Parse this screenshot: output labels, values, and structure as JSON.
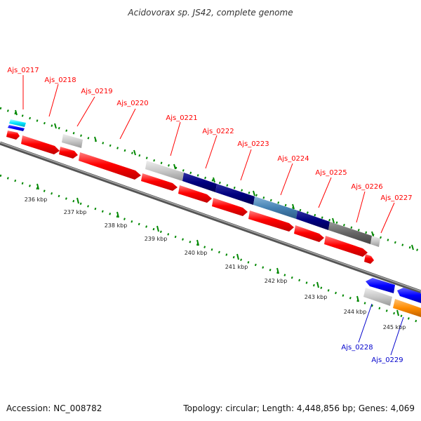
{
  "title": "Acidovorax sp. JS42, complete genome",
  "footer": {
    "accession": "Accession: NC_008782",
    "summary": "Topology: circular; Length: 4,448,856 bp; Genes: 4,069"
  },
  "colors": {
    "forward_label": "#ff0000",
    "reverse_label": "#0000cc",
    "backbone": "#777777",
    "tick_minor": "#008800",
    "red": "#ff0000",
    "navy": "#000080",
    "steel": "#4682b4",
    "gray": "#666666",
    "lightgray": "#c8c8c8",
    "cyan": "#00e5ff",
    "blue": "#0000ff",
    "orange": "#ff8c00"
  },
  "scale_labels": [
    "236 kbp",
    "237 kbp",
    "238 kbp",
    "239 kbp",
    "240 kbp",
    "241 kbp",
    "242 kbp",
    "243 kbp",
    "244 kbp",
    "245 kbp"
  ],
  "forward_genes": [
    "Ajs_0217",
    "Ajs_0218",
    "Ajs_0219",
    "Ajs_0220",
    "Ajs_0221",
    "Ajs_0222",
    "Ajs_0223",
    "Ajs_0224",
    "Ajs_0225",
    "Ajs_0226",
    "Ajs_0227"
  ],
  "reverse_genes": [
    "Ajs_0228",
    "Ajs_0229"
  ]
}
